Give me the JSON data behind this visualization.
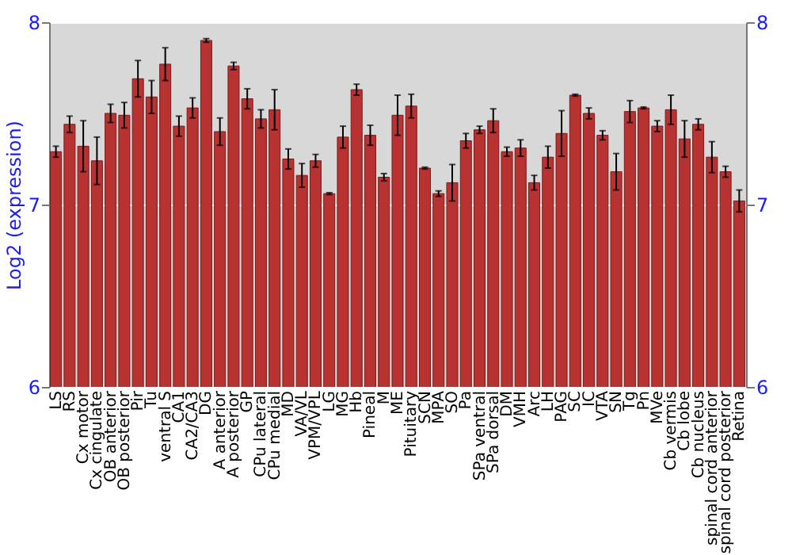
{
  "chart_data": {
    "type": "bar",
    "ylabel": "Log2 (expression)",
    "categories": [
      "LS",
      "RS",
      "Cx motor",
      "Cx cingulate",
      "OB anterior",
      "OB posterior",
      "Pir",
      "Tu",
      "ventral S",
      "CA1",
      "CA2/CA3",
      "DG",
      "A anterior",
      "A posterior",
      "GP",
      "CPu lateral",
      "CPu medial",
      "MD",
      "VA/VL",
      "VPM/VPL",
      "LG",
      "MG",
      "Hb",
      "Pineal",
      "M",
      "ME",
      "Pituitary",
      "SCN",
      "MPA",
      "SO",
      "Pa",
      "SPa ventral",
      "SPa dorsal",
      "DM",
      "VMH",
      "Arc",
      "LH",
      "PAG",
      "SC",
      "IC",
      "VTA",
      "SN",
      "Tg",
      "Pn",
      "MVe",
      "Cb vermis",
      "Cb lobe",
      "Cb nucleus",
      "spinal cord anterior",
      "spinal cord posterior",
      "Retina"
    ],
    "values": [
      7.29,
      7.44,
      7.32,
      7.24,
      7.5,
      7.49,
      7.69,
      7.59,
      7.77,
      7.43,
      7.53,
      7.9,
      7.4,
      7.76,
      7.58,
      7.47,
      7.52,
      7.25,
      7.16,
      7.24,
      7.06,
      7.37,
      7.63,
      7.38,
      7.15,
      7.49,
      7.54,
      7.2,
      7.06,
      7.12,
      7.35,
      7.41,
      7.46,
      7.29,
      7.31,
      7.12,
      7.26,
      7.39,
      7.6,
      7.5,
      7.38,
      7.18,
      7.51,
      7.53,
      7.43,
      7.52,
      7.36,
      7.44,
      7.26,
      7.18,
      7.02
    ],
    "errors": [
      0.03,
      0.045,
      0.14,
      0.13,
      0.05,
      0.07,
      0.1,
      0.09,
      0.09,
      0.055,
      0.055,
      0.01,
      0.075,
      0.02,
      0.055,
      0.05,
      0.11,
      0.055,
      0.065,
      0.035,
      0.005,
      0.06,
      0.03,
      0.055,
      0.02,
      0.11,
      0.065,
      0.005,
      0.015,
      0.1,
      0.04,
      0.02,
      0.065,
      0.025,
      0.045,
      0.04,
      0.06,
      0.125,
      0.005,
      0.03,
      0.025,
      0.1,
      0.06,
      0.005,
      0.03,
      0.08,
      0.1,
      0.03,
      0.085,
      0.03,
      0.06
    ],
    "color": "#b83232",
    "ylim": [
      6,
      8
    ],
    "yticks": [
      6,
      7,
      8
    ],
    "y2lim": [
      6,
      8
    ],
    "y2ticks": [
      6,
      7,
      8
    ],
    "grid": "y"
  }
}
